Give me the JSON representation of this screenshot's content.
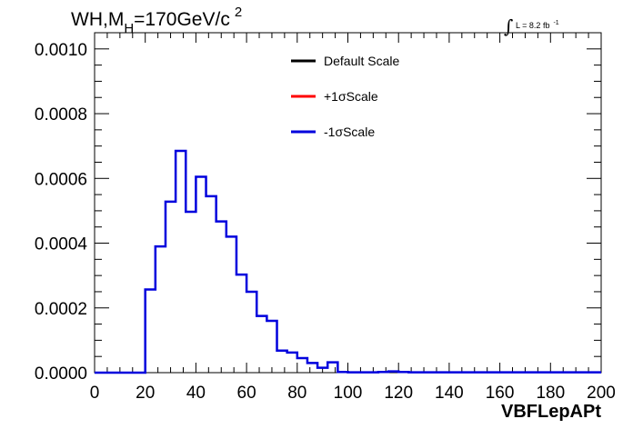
{
  "chart_data": {
    "type": "histogram",
    "title": {
      "main": "WH,M",
      "subscript": "H",
      "value": "=170GeV/c",
      "superscript": "2"
    },
    "luminosity": {
      "integral": "∫",
      "text": "L = 8.2 fb",
      "superscript": "-1"
    },
    "xlabel": "VBFLepAPt",
    "xlim": [
      0,
      200
    ],
    "ylim": [
      0,
      0.00105
    ],
    "x_ticks": [
      "0",
      "20",
      "40",
      "60",
      "80",
      "100",
      "120",
      "140",
      "160",
      "180",
      "200"
    ],
    "y_ticks": [
      "0.0000",
      "0.0002",
      "0.0004",
      "0.0006",
      "0.0008",
      "0.0010"
    ],
    "bin_width": 4,
    "bin_edges_start": 0,
    "legend": {
      "placement": "top-center",
      "entries": [
        {
          "label": "Default Scale",
          "color": "#000000"
        },
        {
          "label": "+1σScale",
          "color": "#ff0000"
        },
        {
          "label": "-1σScale",
          "color": "#0000dd"
        }
      ]
    },
    "series": [
      {
        "name": "-1σScale",
        "color": "#0000dd",
        "values": [
          0,
          0,
          0,
          0,
          0,
          0.000257,
          0.00039,
          0.000528,
          0.000685,
          0.000497,
          0.000605,
          0.000545,
          0.000467,
          0.00042,
          0.000303,
          0.00025,
          0.000175,
          0.00016,
          6.8e-05,
          6.2e-05,
          4.5e-05,
          3e-05,
          1.5e-05,
          3.2e-05,
          2e-06,
          1e-06,
          1e-06,
          1e-06,
          2e-06,
          4e-06,
          2e-06,
          1e-06,
          1e-06,
          1e-06,
          1e-06,
          1e-06,
          1e-06,
          1e-06,
          1e-06,
          1e-06,
          1e-06,
          1e-06,
          1e-06,
          1e-06,
          1e-06,
          1e-06,
          1e-06,
          1e-06,
          1e-06,
          1e-06
        ]
      }
    ]
  }
}
